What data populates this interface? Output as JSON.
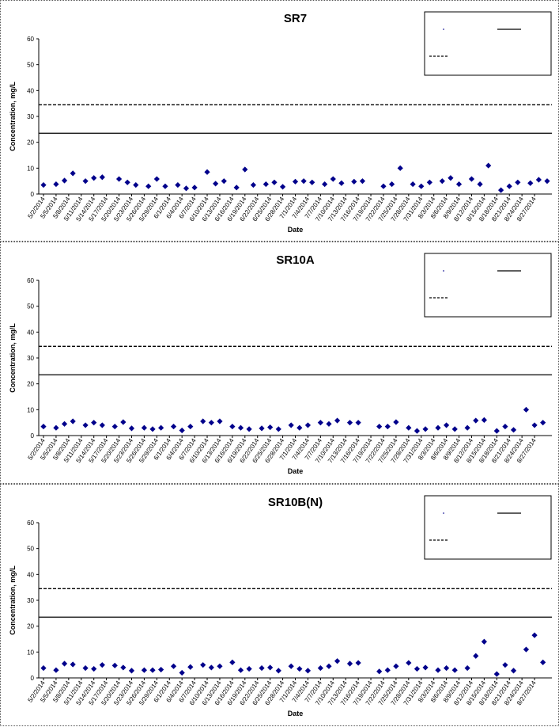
{
  "chart_data": [
    {
      "type": "scatter",
      "title": "SR7",
      "xlabel": "Date",
      "ylabel": "Concentration, mg/L",
      "ylim": [
        0,
        60
      ],
      "yticks": [
        "0",
        "10",
        "20",
        "30",
        "40",
        "50",
        "60"
      ],
      "categories": [
        "5/2/2014",
        "5/5/2014",
        "5/8/2014",
        "5/11/2014",
        "5/14/2014",
        "5/17/2014",
        "5/20/2014",
        "5/23/2014",
        "5/26/2014",
        "5/29/2014",
        "6/1/2014",
        "6/4/2014",
        "6/7/2014",
        "6/10/2014",
        "6/13/2014",
        "6/16/2014",
        "6/19/2014",
        "6/22/2014",
        "6/25/2014",
        "6/28/2014",
        "7/1/2014",
        "7/4/2014",
        "7/7/2014",
        "7/10/2014",
        "7/13/2014",
        "7/16/2014",
        "7/19/2014",
        "7/22/2014",
        "7/25/2014",
        "7/28/2014",
        "7/31/2014",
        "8/3/2014",
        "8/6/2014",
        "8/9/2014",
        "8/12/2014",
        "8/15/2014",
        "8/18/2014",
        "8/21/2014",
        "8/24/2014",
        "8/27/2014"
      ],
      "grid": false,
      "legend_position": "top-right",
      "series": [
        {
          "kind": "points",
          "color": "#00008B",
          "points": [
            {
              "d": 0,
              "y": 3.5
            },
            {
              "d": 3,
              "y": 3.8
            },
            {
              "d": 5,
              "y": 5.2
            },
            {
              "d": 7,
              "y": 8
            },
            {
              "d": 10,
              "y": 5
            },
            {
              "d": 12,
              "y": 6.2
            },
            {
              "d": 14,
              "y": 6.5
            },
            {
              "d": 18,
              "y": 5.8
            },
            {
              "d": 20,
              "y": 4.5
            },
            {
              "d": 22,
              "y": 3.5
            },
            {
              "d": 25,
              "y": 3
            },
            {
              "d": 27,
              "y": 5.8
            },
            {
              "d": 29,
              "y": 3
            },
            {
              "d": 32,
              "y": 3.5
            },
            {
              "d": 34,
              "y": 2.2
            },
            {
              "d": 36,
              "y": 2.5
            },
            {
              "d": 39,
              "y": 8.5
            },
            {
              "d": 41,
              "y": 4
            },
            {
              "d": 43,
              "y": 5
            },
            {
              "d": 46,
              "y": 2.5
            },
            {
              "d": 48,
              "y": 9.5
            },
            {
              "d": 50,
              "y": 3.5
            },
            {
              "d": 53,
              "y": 3.8
            },
            {
              "d": 55,
              "y": 4.5
            },
            {
              "d": 57,
              "y": 2.8
            },
            {
              "d": 60,
              "y": 4.8
            },
            {
              "d": 62,
              "y": 5
            },
            {
              "d": 64,
              "y": 4.5
            },
            {
              "d": 67,
              "y": 3.8
            },
            {
              "d": 69,
              "y": 5.8
            },
            {
              "d": 71,
              "y": 4.2
            },
            {
              "d": 74,
              "y": 4.8
            },
            {
              "d": 76,
              "y": 5
            },
            {
              "d": 81,
              "y": 3
            },
            {
              "d": 83,
              "y": 3.8
            },
            {
              "d": 85,
              "y": 10
            },
            {
              "d": 88,
              "y": 3.8
            },
            {
              "d": 90,
              "y": 3
            },
            {
              "d": 92,
              "y": 4.5
            },
            {
              "d": 95,
              "y": 5
            },
            {
              "d": 97,
              "y": 6.2
            },
            {
              "d": 99,
              "y": 3.8
            },
            {
              "d": 102,
              "y": 5.8
            },
            {
              "d": 104,
              "y": 3.8
            },
            {
              "d": 106,
              "y": 11
            },
            {
              "d": 109,
              "y": 1.5
            },
            {
              "d": 111,
              "y": 3
            },
            {
              "d": 113,
              "y": 4.5
            },
            {
              "d": 116,
              "y": 4.2
            },
            {
              "d": 118,
              "y": 5.5
            },
            {
              "d": 120,
              "y": 5
            }
          ]
        },
        {
          "kind": "hline",
          "style": "solid",
          "y": 23.5
        },
        {
          "kind": "hline",
          "style": "dashed",
          "y": 34.5
        }
      ]
    },
    {
      "type": "scatter",
      "title": "SR10A",
      "xlabel": "Date",
      "ylabel": "Concentration, mg/L",
      "ylim": [
        0,
        60
      ],
      "yticks": [
        "0",
        "10",
        "20",
        "30",
        "40",
        "50",
        "60"
      ],
      "categories": [
        "5/2/2014",
        "5/5/2014",
        "5/8/2014",
        "5/11/2014",
        "5/14/2014",
        "5/17/2014",
        "5/20/2014",
        "5/23/2014",
        "5/26/2014",
        "5/29/2014",
        "6/1/2014",
        "6/4/2014",
        "6/7/2014",
        "6/10/2014",
        "6/13/2014",
        "6/16/2014",
        "6/19/2014",
        "6/22/2014",
        "6/25/2014",
        "6/28/2014",
        "7/1/2014",
        "7/4/2014",
        "7/7/2014",
        "7/10/2014",
        "7/13/2014",
        "7/16/2014",
        "7/19/2014",
        "7/22/2014",
        "7/25/2014",
        "7/28/2014",
        "7/31/2014",
        "8/3/2014",
        "8/6/2014",
        "8/9/2014",
        "8/12/2014",
        "8/15/2014",
        "8/18/2014",
        "8/21/2014",
        "8/24/2014",
        "8/27/2014"
      ],
      "grid": false,
      "legend_position": "top-right",
      "series": [
        {
          "kind": "points",
          "color": "#00008B",
          "points": [
            {
              "d": 0,
              "y": 3.5
            },
            {
              "d": 3,
              "y": 3
            },
            {
              "d": 5,
              "y": 4.5
            },
            {
              "d": 7,
              "y": 5.5
            },
            {
              "d": 10,
              "y": 4
            },
            {
              "d": 12,
              "y": 5
            },
            {
              "d": 14,
              "y": 4
            },
            {
              "d": 17,
              "y": 3.5
            },
            {
              "d": 19,
              "y": 5.2
            },
            {
              "d": 21,
              "y": 2.8
            },
            {
              "d": 24,
              "y": 3
            },
            {
              "d": 26,
              "y": 2.5
            },
            {
              "d": 28,
              "y": 3
            },
            {
              "d": 31,
              "y": 3.5
            },
            {
              "d": 33,
              "y": 2
            },
            {
              "d": 35,
              "y": 3.5
            },
            {
              "d": 38,
              "y": 5.5
            },
            {
              "d": 40,
              "y": 5
            },
            {
              "d": 42,
              "y": 5.5
            },
            {
              "d": 45,
              "y": 3.5
            },
            {
              "d": 47,
              "y": 3
            },
            {
              "d": 49,
              "y": 2.5
            },
            {
              "d": 52,
              "y": 2.8
            },
            {
              "d": 54,
              "y": 3.2
            },
            {
              "d": 56,
              "y": 2.5
            },
            {
              "d": 59,
              "y": 4
            },
            {
              "d": 61,
              "y": 3
            },
            {
              "d": 63,
              "y": 4
            },
            {
              "d": 66,
              "y": 5
            },
            {
              "d": 68,
              "y": 4.5
            },
            {
              "d": 70,
              "y": 5.8
            },
            {
              "d": 73,
              "y": 5
            },
            {
              "d": 75,
              "y": 5
            },
            {
              "d": 80,
              "y": 3.5
            },
            {
              "d": 82,
              "y": 3.5
            },
            {
              "d": 84,
              "y": 5.2
            },
            {
              "d": 87,
              "y": 3
            },
            {
              "d": 89,
              "y": 1.8
            },
            {
              "d": 91,
              "y": 2.5
            },
            {
              "d": 94,
              "y": 3
            },
            {
              "d": 96,
              "y": 4
            },
            {
              "d": 98,
              "y": 2.5
            },
            {
              "d": 101,
              "y": 3
            },
            {
              "d": 103,
              "y": 5.8
            },
            {
              "d": 105,
              "y": 6
            },
            {
              "d": 108,
              "y": 1.8
            },
            {
              "d": 110,
              "y": 3.5
            },
            {
              "d": 112,
              "y": 2.2
            },
            {
              "d": 115,
              "y": 10
            },
            {
              "d": 117,
              "y": 4
            },
            {
              "d": 119,
              "y": 5
            }
          ]
        },
        {
          "kind": "hline",
          "style": "solid",
          "y": 23.5
        },
        {
          "kind": "hline",
          "style": "dashed",
          "y": 34.5
        }
      ]
    },
    {
      "type": "scatter",
      "title": "SR10B(N)",
      "xlabel": "Date",
      "ylabel": "Concentration, mg/L",
      "ylim": [
        0,
        60
      ],
      "yticks": [
        "0",
        "10",
        "20",
        "30",
        "40",
        "50",
        "60"
      ],
      "categories": [
        "5/2/2014",
        "5/5/2014",
        "5/8/2014",
        "5/11/2014",
        "5/14/2014",
        "5/17/2014",
        "5/20/2014",
        "5/23/2014",
        "5/26/2014",
        "5/29/2014",
        "6/1/2014",
        "6/4/2014",
        "6/7/2014",
        "6/10/2014",
        "6/13/2014",
        "6/16/2014",
        "6/19/2014",
        "6/22/2014",
        "6/25/2014",
        "6/28/2014",
        "7/1/2014",
        "7/4/2014",
        "7/7/2014",
        "7/10/2014",
        "7/13/2014",
        "7/16/2014",
        "7/19/2014",
        "7/22/2014",
        "7/25/2014",
        "7/28/2014",
        "7/31/2014",
        "8/3/2014",
        "8/6/2014",
        "8/9/2014",
        "8/12/2014",
        "8/15/2014",
        "8/18/2014",
        "8/21/2014",
        "8/24/2014",
        "8/27/2014"
      ],
      "grid": false,
      "legend_position": "top-right",
      "series": [
        {
          "kind": "points",
          "color": "#00008B",
          "points": [
            {
              "d": 0,
              "y": 3.8
            },
            {
              "d": 3,
              "y": 3
            },
            {
              "d": 5,
              "y": 5.5
            },
            {
              "d": 7,
              "y": 5.2
            },
            {
              "d": 10,
              "y": 3.8
            },
            {
              "d": 12,
              "y": 3.5
            },
            {
              "d": 14,
              "y": 5
            },
            {
              "d": 17,
              "y": 4.8
            },
            {
              "d": 19,
              "y": 4
            },
            {
              "d": 21,
              "y": 2.8
            },
            {
              "d": 24,
              "y": 3
            },
            {
              "d": 26,
              "y": 3
            },
            {
              "d": 28,
              "y": 3.2
            },
            {
              "d": 31,
              "y": 4.5
            },
            {
              "d": 33,
              "y": 2
            },
            {
              "d": 35,
              "y": 4.2
            },
            {
              "d": 38,
              "y": 5
            },
            {
              "d": 40,
              "y": 4
            },
            {
              "d": 42,
              "y": 4.5
            },
            {
              "d": 45,
              "y": 6
            },
            {
              "d": 47,
              "y": 3
            },
            {
              "d": 49,
              "y": 3.5
            },
            {
              "d": 52,
              "y": 3.8
            },
            {
              "d": 54,
              "y": 4
            },
            {
              "d": 56,
              "y": 2.8
            },
            {
              "d": 59,
              "y": 4.5
            },
            {
              "d": 61,
              "y": 3.5
            },
            {
              "d": 63,
              "y": 2.8
            },
            {
              "d": 66,
              "y": 3.8
            },
            {
              "d": 68,
              "y": 4.5
            },
            {
              "d": 70,
              "y": 6.5
            },
            {
              "d": 73,
              "y": 5.5
            },
            {
              "d": 75,
              "y": 5.8
            },
            {
              "d": 80,
              "y": 2.5
            },
            {
              "d": 82,
              "y": 3
            },
            {
              "d": 84,
              "y": 4.5
            },
            {
              "d": 87,
              "y": 5.8
            },
            {
              "d": 89,
              "y": 3.5
            },
            {
              "d": 91,
              "y": 4
            },
            {
              "d": 94,
              "y": 3
            },
            {
              "d": 96,
              "y": 3.8
            },
            {
              "d": 98,
              "y": 3
            },
            {
              "d": 101,
              "y": 3.8
            },
            {
              "d": 103,
              "y": 8.5
            },
            {
              "d": 105,
              "y": 14
            },
            {
              "d": 108,
              "y": 1.5
            },
            {
              "d": 110,
              "y": 5
            },
            {
              "d": 112,
              "y": 2.8
            },
            {
              "d": 115,
              "y": 11
            },
            {
              "d": 117,
              "y": 16.5
            },
            {
              "d": 119,
              "y": 6
            }
          ]
        },
        {
          "kind": "hline",
          "style": "solid",
          "y": 23.5
        },
        {
          "kind": "hline",
          "style": "dashed",
          "y": 34.5
        }
      ]
    }
  ]
}
